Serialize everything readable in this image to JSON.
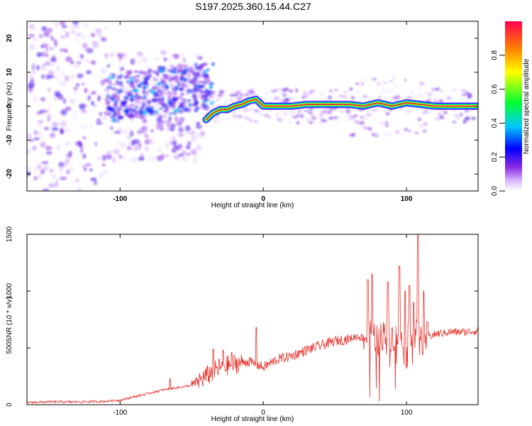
{
  "title": "S197.2025.360.15.44.C27",
  "chart_data": [
    {
      "type": "heatmap",
      "name": "spectrogram",
      "xlabel": "Height of straight line (km)",
      "ylabel": "Frequency (Hz)",
      "xlim": [
        -165,
        150
      ],
      "ylim": [
        -25,
        25
      ],
      "xticks": [
        -100,
        0,
        100
      ],
      "yticks": [
        -20,
        -10,
        0,
        10,
        20
      ],
      "colorbar": {
        "label": "Normalized spectral amplitude",
        "range": [
          0,
          1
        ],
        "ticks": [
          "0.0",
          "0.2",
          "0.4",
          "0.6",
          "0.8"
        ]
      },
      "ridge": {
        "description": "dominant frequency trace",
        "points": [
          [
            -40,
            -4
          ],
          [
            -35,
            -2
          ],
          [
            -30,
            -1
          ],
          [
            -25,
            -1
          ],
          [
            -20,
            0
          ],
          [
            -15,
            0.5
          ],
          [
            -10,
            1.5
          ],
          [
            -5,
            2
          ],
          [
            0,
            0
          ],
          [
            10,
            0
          ],
          [
            20,
            0
          ],
          [
            30,
            0.5
          ],
          [
            40,
            0.5
          ],
          [
            50,
            0.5
          ],
          [
            60,
            0.5
          ],
          [
            70,
            0
          ],
          [
            80,
            1
          ],
          [
            90,
            0
          ],
          [
            100,
            1
          ],
          [
            110,
            0.5
          ],
          [
            120,
            0
          ],
          [
            150,
            0
          ]
        ]
      }
    },
    {
      "type": "line",
      "name": "snr",
      "xlabel": "Height of straight line (km)",
      "ylabel": "SNR (10 * v/v)",
      "xlim": [
        -165,
        150
      ],
      "ylim": [
        0,
        1500
      ],
      "xticks": [
        -100,
        0,
        100
      ],
      "yticks": [
        0,
        500,
        1000,
        1500
      ],
      "series": [
        {
          "name": "SNR",
          "color": "#e8302a",
          "x": [
            -165,
            -150,
            -130,
            -110,
            -100,
            -90,
            -80,
            -70,
            -60,
            -50,
            -40,
            -30,
            -20,
            -10,
            0,
            10,
            20,
            30,
            40,
            50,
            60,
            65,
            70,
            75,
            80,
            85,
            90,
            95,
            100,
            105,
            110,
            115,
            120,
            130,
            140,
            150
          ],
          "y": [
            20,
            25,
            25,
            30,
            40,
            70,
            100,
            130,
            150,
            170,
            250,
            330,
            360,
            380,
            330,
            400,
            430,
            480,
            520,
            560,
            580,
            600,
            590,
            620,
            560,
            640,
            600,
            620,
            640,
            650,
            560,
            600,
            620,
            640,
            640,
            650
          ]
        }
      ],
      "spikes": [
        {
          "x": -65,
          "y": 230
        },
        {
          "x": -35,
          "y": 490
        },
        {
          "x": -28,
          "y": 480
        },
        {
          "x": -22,
          "y": 460
        },
        {
          "x": -5,
          "y": 680
        },
        {
          "x": 73,
          "y": 1100
        },
        {
          "x": 76,
          "y": 1150
        },
        {
          "x": 87,
          "y": 1080
        },
        {
          "x": 95,
          "y": 1220
        },
        {
          "x": 99,
          "y": 1000
        },
        {
          "x": 102,
          "y": 1050
        },
        {
          "x": 105,
          "y": 900
        },
        {
          "x": 108,
          "y": 1500
        },
        {
          "x": 112,
          "y": 1000
        }
      ]
    }
  ]
}
